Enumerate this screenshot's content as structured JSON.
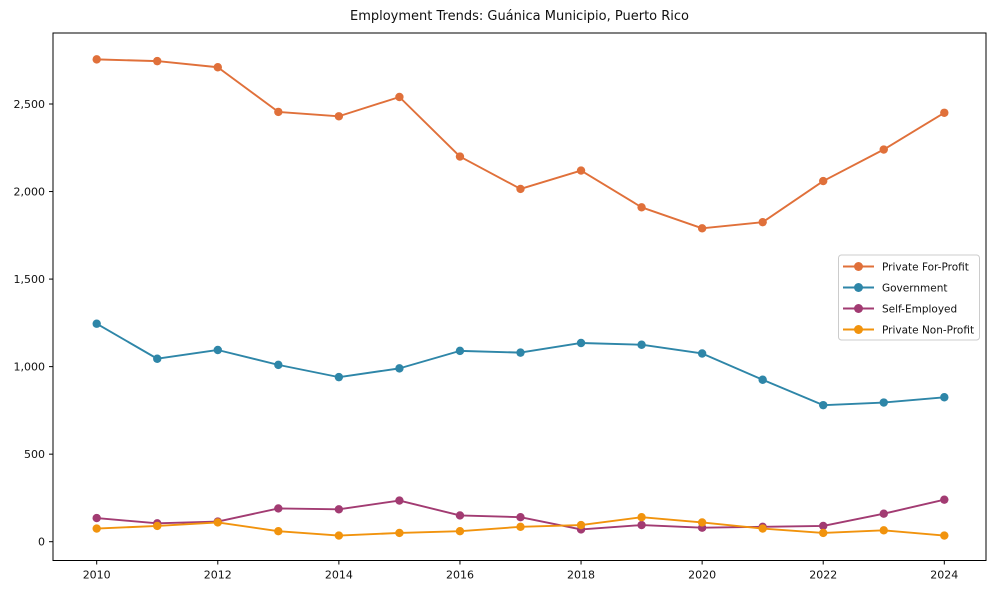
{
  "title": "Employment Trends: Guánica Municipio, Puerto Rico",
  "chart_data": {
    "type": "line",
    "title": "Employment Trends: Guánica Municipio, Puerto Rico",
    "xlabel": "",
    "ylabel": "",
    "grid": false,
    "legend_position": "center-right",
    "x": [
      2010,
      2011,
      2012,
      2013,
      2014,
      2015,
      2016,
      2017,
      2018,
      2019,
      2020,
      2021,
      2022,
      2023,
      2024
    ],
    "xticks": [
      2010,
      2012,
      2014,
      2016,
      2018,
      2020,
      2022,
      2024
    ],
    "yticks": [
      0,
      500,
      1000,
      1500,
      2000,
      2500
    ],
    "ytick_labels": [
      "0",
      "500",
      "1,000",
      "1,500",
      "2,000",
      "2,500"
    ],
    "ylim": [
      -110,
      2900
    ],
    "series": [
      {
        "name": "Private For-Profit",
        "color": "#E0703A",
        "values": [
          2755,
          2745,
          2710,
          2455,
          2430,
          2540,
          2200,
          2015,
          2120,
          1910,
          1790,
          1825,
          2060,
          2240,
          2450
        ]
      },
      {
        "name": "Government",
        "color": "#2E86A8",
        "values": [
          1245,
          1045,
          1095,
          1010,
          940,
          990,
          1090,
          1080,
          1135,
          1125,
          1075,
          925,
          780,
          795,
          825
        ]
      },
      {
        "name": "Self-Employed",
        "color": "#A23B72",
        "values": [
          135,
          105,
          115,
          190,
          185,
          235,
          150,
          140,
          70,
          95,
          80,
          85,
          90,
          160,
          240
        ]
      },
      {
        "name": "Private Non-Profit",
        "color": "#F1930D",
        "values": [
          75,
          90,
          110,
          60,
          35,
          50,
          60,
          85,
          95,
          140,
          110,
          75,
          50,
          65,
          35
        ]
      }
    ]
  }
}
